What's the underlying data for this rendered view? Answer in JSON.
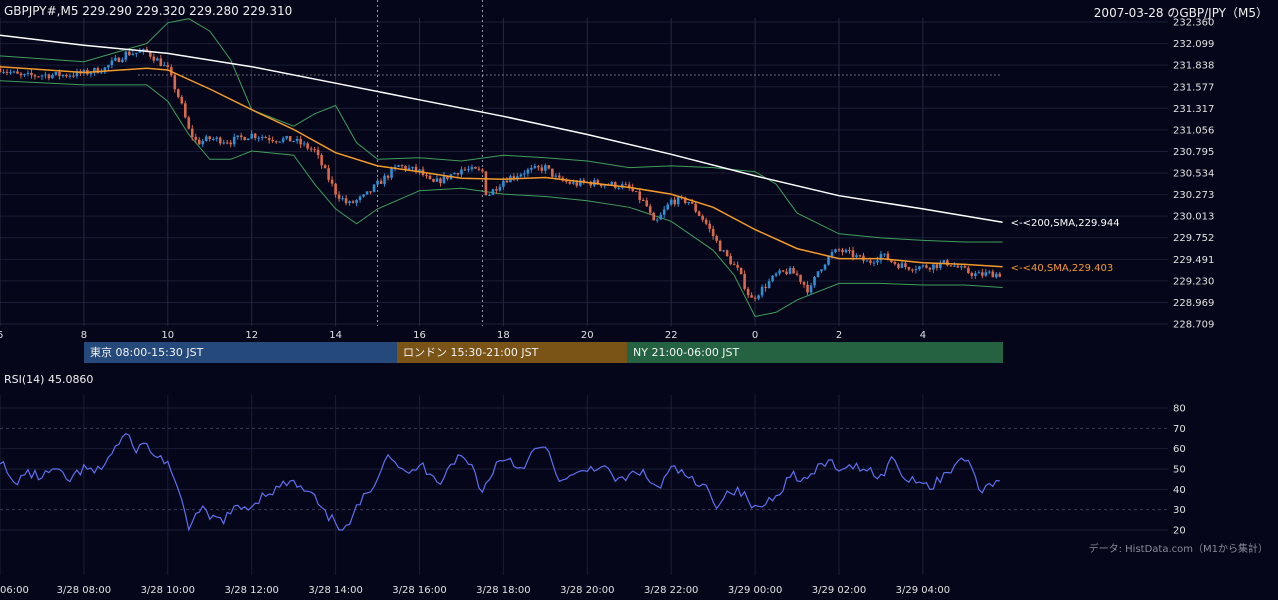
{
  "header": {
    "symbol_info": "GBPJPY#,M5 229.290 229.320 229.280 229.310",
    "title": "2007-03-28 のGBP/JPY（M5）"
  },
  "sessions": [
    {
      "label": "東京 08:00-15:30 JST",
      "color": "#24497a"
    },
    {
      "label": "ロンドン 15:30-21:00 JST",
      "color": "#7a5316"
    },
    {
      "label": "NY 21:00-06:00 JST",
      "color": "#246241"
    }
  ],
  "rsi_panel": {
    "label": "RSI(14) 45.0860"
  },
  "source_note": "データ: HistData.com（M1から集計）",
  "colors": {
    "background": "#050619",
    "candle_up": "#2f8fd6",
    "candle_down": "#d9694a",
    "sma40": "#f39a2a",
    "sma200": "#ffffff",
    "bollinger": "#3e9f5a",
    "rsi": "#5d6ff0"
  },
  "chart_data": [
    {
      "type": "candlestick",
      "title": "GBPJPY#,M5 229.290 229.320 229.280 229.310",
      "price_ticks": [
        "232.360",
        "232.099",
        "231.838",
        "231.577",
        "231.317",
        "231.056",
        "230.795",
        "230.534",
        "230.273",
        "230.013",
        "229.752",
        "229.491",
        "229.230",
        "228.969",
        "228.709"
      ],
      "ylim": [
        228.709,
        232.36
      ],
      "hour_ticks": [
        "6",
        "8",
        "10",
        "12",
        "14",
        "16",
        "18",
        "20",
        "22",
        "0",
        "2",
        "4"
      ],
      "time_ticks": [
        "06:00",
        "3/28 08:00",
        "3/28 10:00",
        "3/28 12:00",
        "3/28 14:00",
        "3/28 16:00",
        "3/28 18:00",
        "3/28 20:00",
        "3/28 22:00",
        "3/29 00:00",
        "3/29 02:00",
        "3/29 04:00"
      ],
      "x_start_hour": 6.0,
      "x_end_hour": 29.9,
      "close_path": [
        [
          6.0,
          231.8
        ],
        [
          6.5,
          231.7
        ],
        [
          7.0,
          231.72
        ],
        [
          7.5,
          231.72
        ],
        [
          8.0,
          231.74
        ],
        [
          8.5,
          231.8
        ],
        [
          9.0,
          231.98
        ],
        [
          9.5,
          232.0
        ],
        [
          9.8,
          231.88
        ],
        [
          10.0,
          231.78
        ],
        [
          10.3,
          231.4
        ],
        [
          10.5,
          231.05
        ],
        [
          10.7,
          230.9
        ],
        [
          11.0,
          230.95
        ],
        [
          11.5,
          230.92
        ],
        [
          12.0,
          231.0
        ],
        [
          12.5,
          230.95
        ],
        [
          13.0,
          230.93
        ],
        [
          13.5,
          230.8
        ],
        [
          13.8,
          230.5
        ],
        [
          14.0,
          230.3
        ],
        [
          14.3,
          230.15
        ],
        [
          14.7,
          230.25
        ],
        [
          15.0,
          230.4
        ],
        [
          15.5,
          230.62
        ],
        [
          16.0,
          230.55
        ],
        [
          16.3,
          230.4
        ],
        [
          16.7,
          230.5
        ],
        [
          17.0,
          230.58
        ],
        [
          17.5,
          230.55
        ],
        [
          17.6,
          230.25
        ],
        [
          18.0,
          230.45
        ],
        [
          18.5,
          230.55
        ],
        [
          19.0,
          230.6
        ],
        [
          19.3,
          230.45
        ],
        [
          19.7,
          230.4
        ],
        [
          20.0,
          230.42
        ],
        [
          20.5,
          230.4
        ],
        [
          20.8,
          230.38
        ],
        [
          21.0,
          230.35
        ],
        [
          21.4,
          230.15
        ],
        [
          21.6,
          229.9
        ],
        [
          22.0,
          230.2
        ],
        [
          22.4,
          230.2
        ],
        [
          22.8,
          229.95
        ],
        [
          23.2,
          229.6
        ],
        [
          23.6,
          229.35
        ],
        [
          23.9,
          229.0
        ],
        [
          24.1,
          229.1
        ],
        [
          24.5,
          229.3
        ],
        [
          24.8,
          229.35
        ],
        [
          25.0,
          229.3
        ],
        [
          25.3,
          229.1
        ],
        [
          25.5,
          229.35
        ],
        [
          25.8,
          229.55
        ],
        [
          26.0,
          229.6
        ],
        [
          26.3,
          229.55
        ],
        [
          26.7,
          229.45
        ],
        [
          27.0,
          229.55
        ],
        [
          27.3,
          229.45
        ],
        [
          27.6,
          229.4
        ],
        [
          28.0,
          229.4
        ],
        [
          28.3,
          229.42
        ],
        [
          28.6,
          229.45
        ],
        [
          29.0,
          229.35
        ],
        [
          29.3,
          229.3
        ],
        [
          29.6,
          229.32
        ],
        [
          29.9,
          229.31
        ]
      ],
      "sma200_path": [
        [
          6.0,
          232.2
        ],
        [
          8.0,
          232.08
        ],
        [
          10.0,
          231.98
        ],
        [
          12.0,
          231.82
        ],
        [
          14.0,
          231.62
        ],
        [
          16.0,
          231.42
        ],
        [
          18.0,
          231.22
        ],
        [
          20.0,
          231.0
        ],
        [
          22.0,
          230.76
        ],
        [
          24.0,
          230.5
        ],
        [
          26.0,
          230.26
        ],
        [
          28.0,
          230.1
        ],
        [
          29.9,
          229.94
        ]
      ],
      "sma40_path": [
        [
          6.0,
          231.82
        ],
        [
          8.0,
          231.75
        ],
        [
          9.5,
          231.8
        ],
        [
          10.0,
          231.78
        ],
        [
          11.0,
          231.55
        ],
        [
          12.0,
          231.3
        ],
        [
          13.0,
          231.06
        ],
        [
          14.0,
          230.78
        ],
        [
          15.0,
          230.62
        ],
        [
          16.0,
          230.55
        ],
        [
          17.0,
          230.47
        ],
        [
          18.0,
          230.46
        ],
        [
          19.0,
          230.48
        ],
        [
          20.0,
          230.42
        ],
        [
          21.0,
          230.36
        ],
        [
          22.0,
          230.28
        ],
        [
          23.0,
          230.12
        ],
        [
          24.0,
          229.85
        ],
        [
          25.0,
          229.62
        ],
        [
          26.0,
          229.5
        ],
        [
          27.0,
          229.5
        ],
        [
          28.0,
          229.45
        ],
        [
          29.0,
          229.43
        ],
        [
          29.9,
          229.4
        ]
      ],
      "bollinger_upper_path": [
        [
          6.0,
          231.95
        ],
        [
          8.0,
          231.88
        ],
        [
          9.5,
          232.1
        ],
        [
          10.0,
          232.35
        ],
        [
          10.5,
          232.4
        ],
        [
          11.0,
          232.25
        ],
        [
          11.5,
          231.9
        ],
        [
          12.0,
          231.3
        ],
        [
          12.5,
          231.2
        ],
        [
          13.0,
          231.1
        ],
        [
          13.5,
          231.25
        ],
        [
          14.0,
          231.35
        ],
        [
          14.5,
          230.9
        ],
        [
          15.0,
          230.7
        ],
        [
          16.0,
          230.72
        ],
        [
          17.0,
          230.68
        ],
        [
          18.0,
          230.75
        ],
        [
          19.0,
          230.72
        ],
        [
          20.0,
          230.68
        ],
        [
          21.0,
          230.6
        ],
        [
          22.0,
          230.62
        ],
        [
          23.0,
          230.6
        ],
        [
          24.0,
          230.55
        ],
        [
          24.5,
          230.4
        ],
        [
          25.0,
          230.05
        ],
        [
          26.0,
          229.8
        ],
        [
          27.0,
          229.75
        ],
        [
          28.0,
          229.72
        ],
        [
          29.0,
          229.7
        ],
        [
          29.9,
          229.7
        ]
      ],
      "bollinger_lower_path": [
        [
          6.0,
          231.65
        ],
        [
          8.0,
          231.6
        ],
        [
          9.5,
          231.6
        ],
        [
          10.0,
          231.4
        ],
        [
          10.5,
          231.0
        ],
        [
          11.0,
          230.7
        ],
        [
          11.5,
          230.7
        ],
        [
          12.0,
          230.8
        ],
        [
          13.0,
          230.75
        ],
        [
          13.5,
          230.4
        ],
        [
          14.0,
          230.1
        ],
        [
          14.5,
          229.92
        ],
        [
          15.0,
          230.1
        ],
        [
          16.0,
          230.32
        ],
        [
          17.0,
          230.35
        ],
        [
          18.0,
          230.28
        ],
        [
          19.0,
          230.25
        ],
        [
          20.0,
          230.2
        ],
        [
          21.0,
          230.12
        ],
        [
          22.0,
          229.95
        ],
        [
          23.0,
          229.6
        ],
        [
          23.5,
          229.3
        ],
        [
          24.0,
          228.8
        ],
        [
          24.5,
          228.85
        ],
        [
          25.0,
          229.0
        ],
        [
          26.0,
          229.2
        ],
        [
          27.0,
          229.2
        ],
        [
          28.0,
          229.18
        ],
        [
          29.0,
          229.18
        ],
        [
          29.9,
          229.15
        ]
      ],
      "sma200_label": "<-<200,SMA,229.944",
      "sma40_label": "<-<40,SMA,229.403",
      "reference_level": 231.72,
      "session_dividers_hours": [
        15.0,
        17.5
      ]
    },
    {
      "type": "line",
      "title": "RSI(14) 45.0860",
      "yticks": [
        "80",
        "70",
        "60",
        "50",
        "40",
        "30",
        "20"
      ],
      "ylim": [
        20,
        80
      ],
      "series": [
        {
          "values_path": [
            [
              6.0,
              55
            ],
            [
              6.3,
              42
            ],
            [
              6.6,
              48
            ],
            [
              7.0,
              46
            ],
            [
              7.3,
              50
            ],
            [
              7.6,
              44
            ],
            [
              8.0,
              50
            ],
            [
              8.3,
              48
            ],
            [
              8.6,
              56
            ],
            [
              8.8,
              62
            ],
            [
              9.0,
              67
            ],
            [
              9.2,
              60
            ],
            [
              9.5,
              62
            ],
            [
              9.7,
              56
            ],
            [
              10.0,
              54
            ],
            [
              10.2,
              40
            ],
            [
              10.4,
              30
            ],
            [
              10.5,
              22
            ],
            [
              10.8,
              30
            ],
            [
              11.0,
              26
            ],
            [
              11.3,
              25
            ],
            [
              11.6,
              30
            ],
            [
              12.0,
              32
            ],
            [
              12.3,
              38
            ],
            [
              12.6,
              40
            ],
            [
              12.9,
              44
            ],
            [
              13.2,
              40
            ],
            [
              13.5,
              36
            ],
            [
              13.7,
              28
            ],
            [
              14.0,
              24
            ],
            [
              14.2,
              18
            ],
            [
              14.5,
              30
            ],
            [
              14.8,
              40
            ],
            [
              15.0,
              46
            ],
            [
              15.2,
              58
            ],
            [
              15.4,
              55
            ],
            [
              15.7,
              46
            ],
            [
              16.0,
              52
            ],
            [
              16.3,
              48
            ],
            [
              16.5,
              44
            ],
            [
              16.8,
              54
            ],
            [
              17.0,
              56
            ],
            [
              17.3,
              50
            ],
            [
              17.5,
              38
            ],
            [
              17.8,
              52
            ],
            [
              18.1,
              56
            ],
            [
              18.4,
              50
            ],
            [
              18.7,
              58
            ],
            [
              19.0,
              61
            ],
            [
              19.2,
              50
            ],
            [
              19.4,
              44
            ],
            [
              19.7,
              46
            ],
            [
              20.0,
              50
            ],
            [
              20.3,
              52
            ],
            [
              20.6,
              46
            ],
            [
              20.9,
              44
            ],
            [
              21.2,
              50
            ],
            [
              21.5,
              44
            ],
            [
              21.7,
              40
            ],
            [
              22.0,
              50
            ],
            [
              22.3,
              48
            ],
            [
              22.6,
              42
            ],
            [
              22.9,
              40
            ],
            [
              23.1,
              32
            ],
            [
              23.4,
              40
            ],
            [
              23.7,
              38
            ],
            [
              24.0,
              30
            ],
            [
              24.3,
              34
            ],
            [
              24.6,
              40
            ],
            [
              24.9,
              48
            ],
            [
              25.2,
              44
            ],
            [
              25.5,
              50
            ],
            [
              25.8,
              54
            ],
            [
              26.1,
              48
            ],
            [
              26.4,
              52
            ],
            [
              26.7,
              50
            ],
            [
              27.0,
              46
            ],
            [
              27.3,
              56
            ],
            [
              27.6,
              44
            ],
            [
              27.9,
              46
            ],
            [
              28.2,
              40
            ],
            [
              28.5,
              48
            ],
            [
              28.8,
              52
            ],
            [
              29.1,
              56
            ],
            [
              29.3,
              40
            ],
            [
              29.6,
              42
            ],
            [
              29.9,
              45
            ]
          ]
        }
      ],
      "bands": [
        30,
        70
      ]
    }
  ]
}
